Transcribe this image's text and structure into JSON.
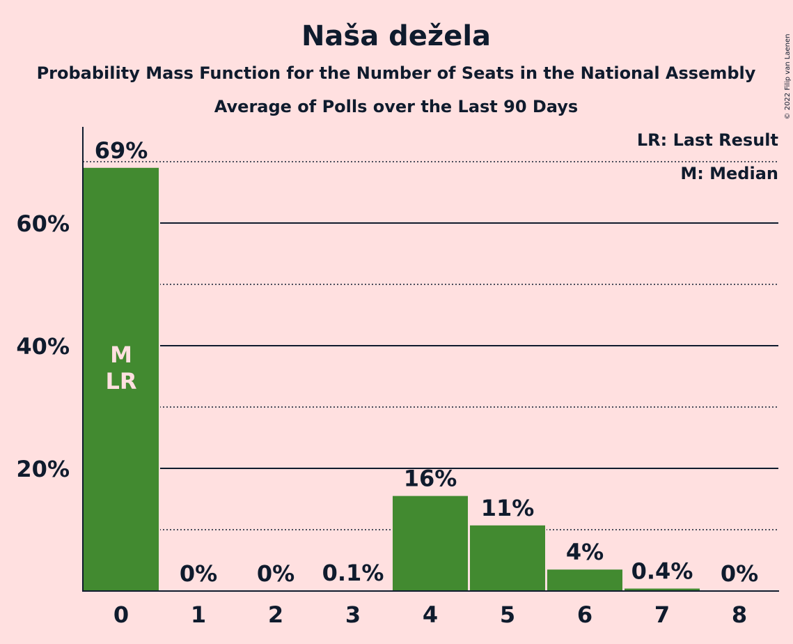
{
  "chart_data": {
    "type": "bar",
    "title": "Naša dežela",
    "subtitle": "Probability Mass Function for the Number of Seats in the National Assembly",
    "subtitle2": "Average of Polls over the Last 90 Days",
    "categories": [
      "0",
      "1",
      "2",
      "3",
      "4",
      "5",
      "6",
      "7",
      "8"
    ],
    "values": [
      69,
      0,
      0,
      0.1,
      15.5,
      10.7,
      3.5,
      0.4,
      0
    ],
    "value_labels": [
      "69%",
      "0%",
      "0%",
      "0.1%",
      "16%",
      "11%",
      "4%",
      "0.4%",
      "0%"
    ],
    "ylim": [
      0,
      75
    ],
    "yticks": [
      {
        "value": 20,
        "label": "20%"
      },
      {
        "value": 40,
        "label": "40%"
      },
      {
        "value": 60,
        "label": "60%"
      }
    ],
    "minor_gridlines": [
      10,
      30,
      50,
      70
    ],
    "bar_color": "#428A30",
    "bar_markers": {
      "category": "0",
      "lines": [
        "M",
        "LR"
      ]
    },
    "legend": {
      "placement": "top-right",
      "items": [
        "LR: Last Result",
        "M: Median"
      ]
    },
    "xlabel": "",
    "ylabel": ""
  },
  "copyright": "© 2022 Filip van Laenen"
}
